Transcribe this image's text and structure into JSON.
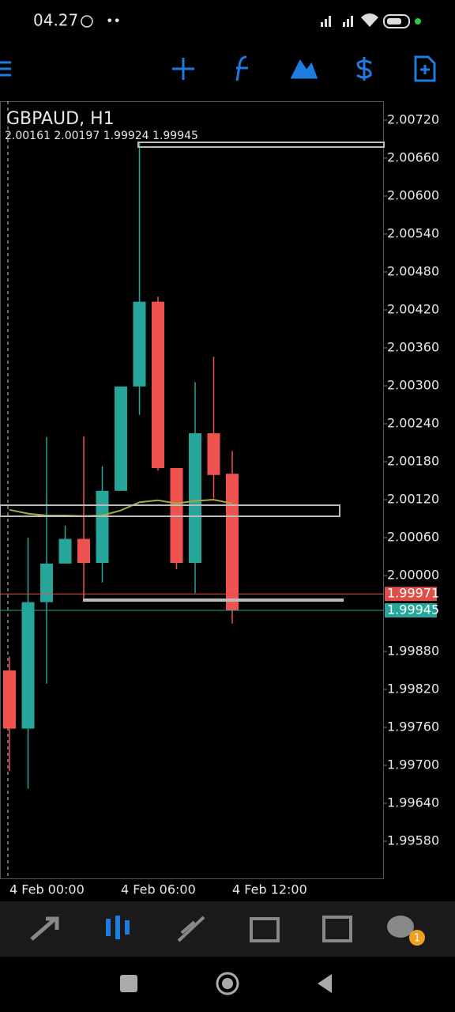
{
  "status": {
    "time": "04.27",
    "dots": "••"
  },
  "nav": {
    "badge": "1"
  },
  "chart_data": {
    "type": "candlestick",
    "title": "GBPAUD, H1",
    "ohlc_label": "2.00161 2.00197 1.99924 1.99945",
    "categories": [
      "4 Feb 00:00",
      null,
      null,
      null,
      null,
      null,
      "4 Feb 06:00",
      null,
      null,
      null,
      null,
      null,
      "4 Feb 12:00"
    ],
    "open": [
      1.9985,
      1.99758,
      1.99958,
      2.00019,
      2.00058,
      2.0002,
      2.00134,
      2.00299,
      2.00433,
      2.0017,
      2.0002,
      2.00225,
      2.00161
    ],
    "high": [
      1.99872,
      2.0006,
      2.00219,
      2.00079,
      2.0022,
      2.00173,
      2.00299,
      2.00685,
      2.00441,
      2.0017,
      2.00306,
      2.00346,
      2.00197
    ],
    "low": [
      1.99691,
      1.99663,
      1.99829,
      2.00019,
      1.99964,
      1.99989,
      2.00134,
      2.00254,
      2.00166,
      2.0001,
      1.99972,
      2.00122,
      1.99924
    ],
    "close": [
      1.99758,
      1.99958,
      2.00019,
      2.00058,
      2.0002,
      2.00134,
      2.00299,
      2.00433,
      2.0017,
      2.0002,
      2.00225,
      2.00159,
      1.99945
    ],
    "up_color": "#26a69a",
    "down_color": "#ef5350",
    "moving_average": {
      "color": "#a8aa3c",
      "values": [
        2.00104,
        2.00098,
        2.00095,
        2.00095,
        2.00094,
        2.00095,
        2.00103,
        2.00116,
        2.00119,
        2.00114,
        2.00118,
        2.0012,
        2.00114
      ]
    },
    "price_lines": [
      {
        "value": 1.99971,
        "color": "#e0504a"
      },
      {
        "value": 1.99945,
        "color": "#26a69a"
      }
    ],
    "ylim": [
      1.9952,
      2.0075
    ],
    "yticks": [
      {
        "value": 2.0072,
        "label": "2.00720"
      },
      {
        "value": 2.0066,
        "label": "2.00660"
      },
      {
        "value": 2.006,
        "label": "2.00600"
      },
      {
        "value": 2.0054,
        "label": "2.00540"
      },
      {
        "value": 2.0048,
        "label": "2.00480"
      },
      {
        "value": 2.0042,
        "label": "2.00420"
      },
      {
        "value": 2.0036,
        "label": "2.00360"
      },
      {
        "value": 2.003,
        "label": "2.00300"
      },
      {
        "value": 2.0024,
        "label": "2.00240"
      },
      {
        "value": 2.0018,
        "label": "2.00180"
      },
      {
        "value": 2.0012,
        "label": "2.00120"
      },
      {
        "value": 2.0006,
        "label": "2.00060"
      },
      {
        "value": 2.0,
        "label": "2.00000"
      },
      {
        "value": 1.9988,
        "label": "1.99880"
      },
      {
        "value": 1.9982,
        "label": "1.99820"
      },
      {
        "value": 1.9976,
        "label": "1.99760"
      },
      {
        "value": 1.997,
        "label": "1.99700"
      },
      {
        "value": 1.9964,
        "label": "1.99640"
      },
      {
        "value": 1.9958,
        "label": "1.99580"
      }
    ]
  }
}
